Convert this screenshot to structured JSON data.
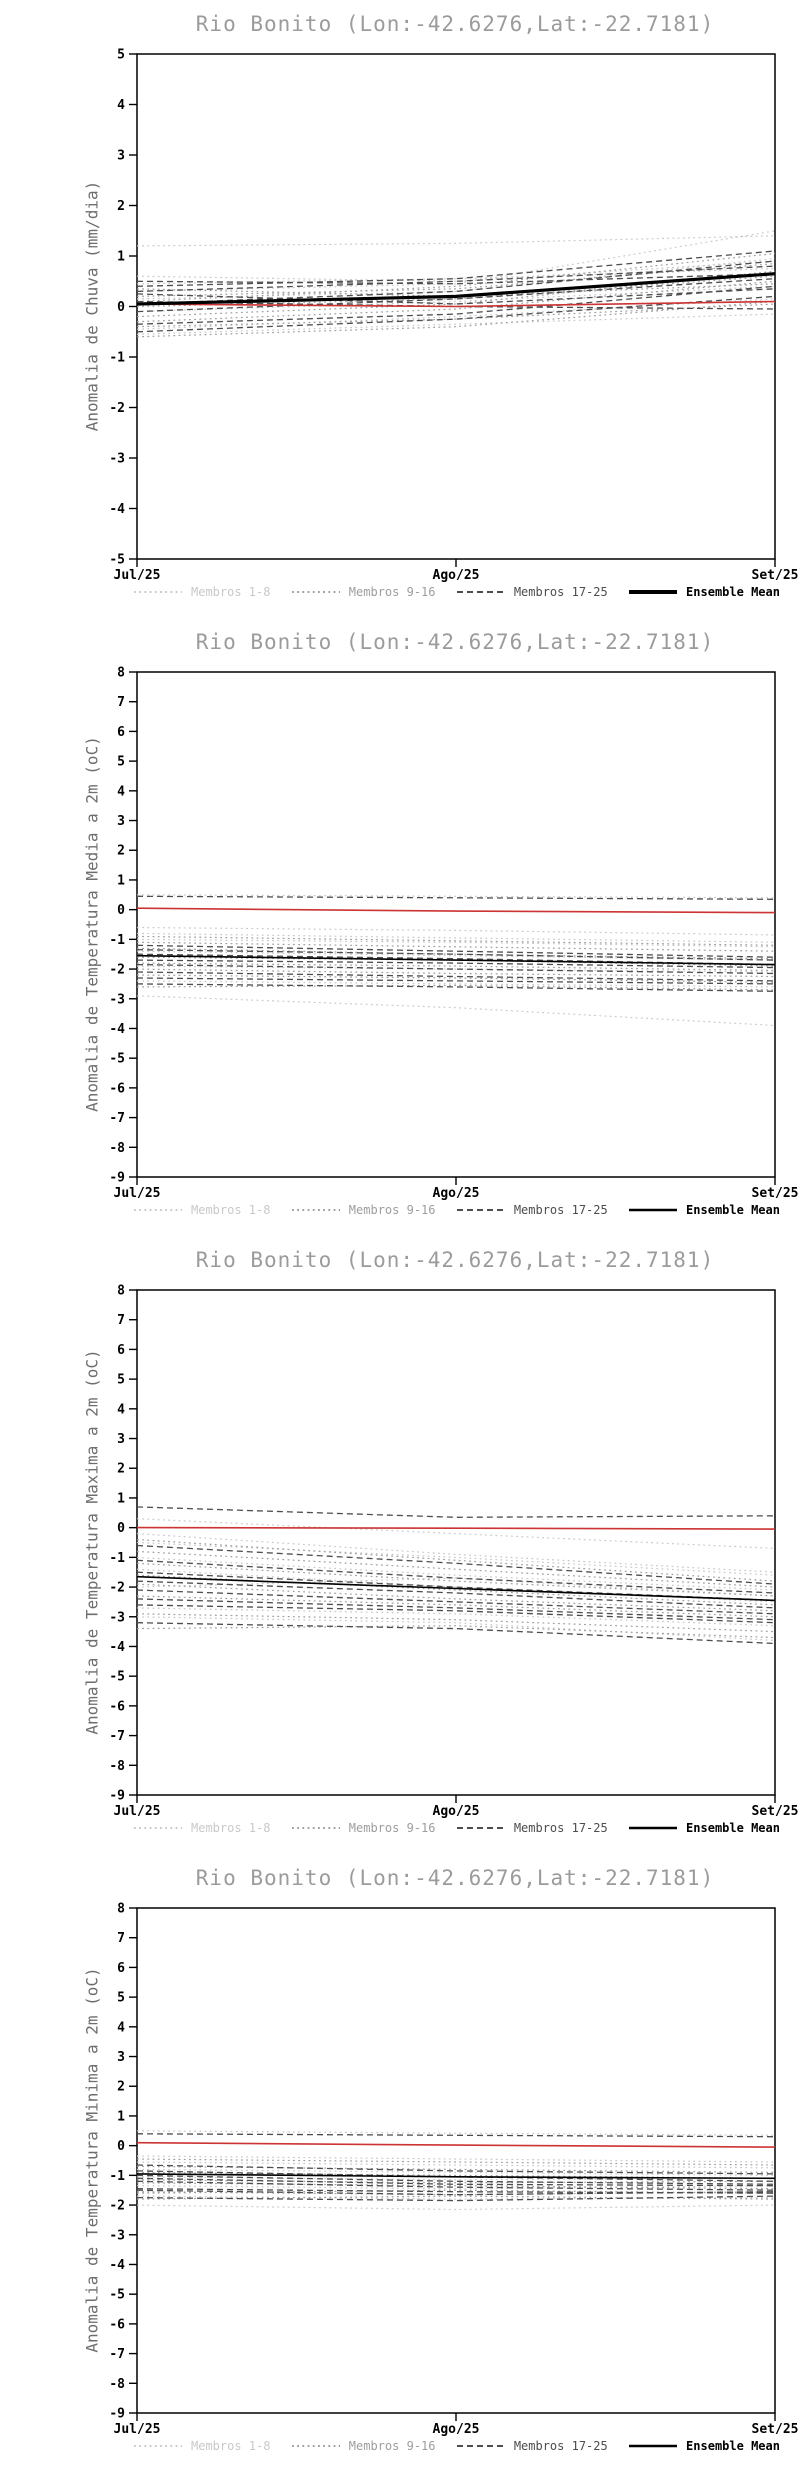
{
  "page": {
    "background": "#ffffff"
  },
  "chart_data": [
    {
      "type": "line",
      "title": "Rio Bonito (Lon:-42.6276,Lat:-22.7181)",
      "ylabel": "Anomalia de Chuva (mm/dia)",
      "xlabel": "",
      "categories": [
        "Jul/25",
        "Ago/25",
        "Set/25"
      ],
      "ylim": [
        -5,
        5
      ],
      "ytick_step": 1,
      "grid": false,
      "legend_position": "bottom",
      "series_groups": [
        {
          "name": "Membros 1-8",
          "color": "#c9c9c9",
          "style": "dotted",
          "width": 1.2,
          "members": [
            [
              1.2,
              1.25,
              1.4
            ],
            [
              0.6,
              0.5,
              0.9
            ],
            [
              0.3,
              0.45,
              1.5
            ],
            [
              -0.1,
              0.1,
              0.4
            ],
            [
              -0.45,
              -0.2,
              0.15
            ],
            [
              0.15,
              0.3,
              0.95
            ],
            [
              -0.55,
              -0.35,
              -0.15
            ],
            [
              0.45,
              0.55,
              0.75
            ]
          ]
        },
        {
          "name": "Membros 9-16",
          "color": "#9e9e9e",
          "style": "dotted",
          "width": 1.2,
          "members": [
            [
              -0.3,
              -0.05,
              0.5
            ],
            [
              0.2,
              0.35,
              0.85
            ],
            [
              -0.6,
              -0.4,
              0.1
            ],
            [
              0.0,
              0.15,
              0.6
            ],
            [
              0.35,
              0.2,
              0.45
            ],
            [
              -0.2,
              0.05,
              0.7
            ],
            [
              0.1,
              0.4,
              1.05
            ],
            [
              -0.4,
              -0.25,
              0.05
            ]
          ]
        },
        {
          "name": "Membros 17-25",
          "color": "#4d4d4d",
          "style": "dashed",
          "width": 1.3,
          "members": [
            [
              0.5,
              0.45,
              0.65
            ],
            [
              -0.1,
              0.15,
              0.55
            ],
            [
              0.25,
              0.05,
              0.35
            ],
            [
              -0.35,
              -0.15,
              0.4
            ],
            [
              0.05,
              0.3,
              0.9
            ],
            [
              0.4,
              0.55,
              1.1
            ],
            [
              -0.5,
              -0.25,
              0.2
            ],
            [
              0.1,
              0.0,
              -0.05
            ],
            [
              0.3,
              0.5,
              0.8
            ]
          ]
        },
        {
          "name": "red-reference-line",
          "color": "#cc3333",
          "style": "solid",
          "width": 1.6,
          "in_legend": false,
          "members": [
            [
              0.05,
              0.0,
              0.1
            ]
          ]
        },
        {
          "name": "Ensemble Mean",
          "color": "#000000",
          "style": "solid",
          "width": 3.2,
          "legend_bold": true,
          "members": [
            [
              0.05,
              0.2,
              0.65
            ]
          ]
        }
      ]
    },
    {
      "type": "line",
      "title": "Rio Bonito (Lon:-42.6276,Lat:-22.7181)",
      "ylabel": "Anomalia de Temperatura Media a 2m (oC)",
      "xlabel": "",
      "categories": [
        "Jul/25",
        "Ago/25",
        "Set/25"
      ],
      "ylim": [
        -9,
        8
      ],
      "ytick_step": 1,
      "grid": false,
      "legend_position": "bottom",
      "series_groups": [
        {
          "name": "Membros 1-8",
          "color": "#c9c9c9",
          "style": "dotted",
          "width": 1.2,
          "members": [
            [
              0.5,
              0.45,
              0.4
            ],
            [
              -0.6,
              -0.7,
              -0.85
            ],
            [
              -2.9,
              -3.3,
              -3.9
            ],
            [
              -1.0,
              -1.1,
              -1.25
            ],
            [
              -1.9,
              -2.0,
              -2.1
            ],
            [
              -0.8,
              -0.95,
              -1.1
            ],
            [
              -2.4,
              -2.5,
              -2.6
            ],
            [
              -1.4,
              -1.55,
              -1.7
            ]
          ]
        },
        {
          "name": "Membros 9-16",
          "color": "#9e9e9e",
          "style": "dotted",
          "width": 1.2,
          "members": [
            [
              -1.1,
              -1.25,
              -1.4
            ],
            [
              -1.8,
              -1.9,
              -2.05
            ],
            [
              -2.2,
              -2.3,
              -2.45
            ],
            [
              -1.3,
              -1.5,
              -1.65
            ],
            [
              -2.6,
              -2.55,
              -2.7
            ],
            [
              -1.6,
              -1.7,
              -1.9
            ],
            [
              -2.0,
              -2.15,
              -2.25
            ],
            [
              -0.9,
              -1.05,
              -1.2
            ]
          ]
        },
        {
          "name": "Membros 17-25",
          "color": "#4d4d4d",
          "style": "dashed",
          "width": 1.3,
          "members": [
            [
              0.45,
              0.4,
              0.35
            ],
            [
              -1.7,
              -1.8,
              -1.95
            ],
            [
              -2.3,
              -2.4,
              -2.5
            ],
            [
              -1.2,
              -1.4,
              -1.6
            ],
            [
              -2.5,
              -2.6,
              -2.75
            ],
            [
              -1.5,
              -1.65,
              -1.85
            ],
            [
              -2.1,
              -2.25,
              -2.4
            ],
            [
              -1.85,
              -2.0,
              -2.15
            ],
            [
              -1.35,
              -1.5,
              -1.7
            ]
          ]
        },
        {
          "name": "red-reference-line",
          "color": "#cc3333",
          "style": "solid",
          "width": 1.6,
          "in_legend": false,
          "members": [
            [
              0.05,
              -0.05,
              -0.1
            ]
          ]
        },
        {
          "name": "Ensemble Mean",
          "color": "#000000",
          "style": "solid",
          "width": 1.6,
          "legend_bold": true,
          "members": [
            [
              -1.55,
              -1.7,
              -1.85
            ]
          ]
        }
      ]
    },
    {
      "type": "line",
      "title": "Rio Bonito (Lon:-42.6276,Lat:-22.7181)",
      "ylabel": "Anomalia de Temperatura Maxima a 2m (oC)",
      "xlabel": "",
      "categories": [
        "Jul/25",
        "Ago/25",
        "Set/25"
      ],
      "ylim": [
        -9,
        8
      ],
      "ytick_step": 1,
      "grid": false,
      "legend_position": "bottom",
      "series_groups": [
        {
          "name": "Membros 1-8",
          "color": "#c9c9c9",
          "style": "dotted",
          "width": 1.2,
          "members": [
            [
              0.3,
              -0.2,
              -0.7
            ],
            [
              -0.5,
              -1.0,
              -1.6
            ],
            [
              -3.0,
              -3.2,
              -3.8
            ],
            [
              -1.0,
              -1.6,
              -2.1
            ],
            [
              -2.0,
              -1.7,
              -2.3
            ],
            [
              -0.2,
              -0.9,
              -1.5
            ],
            [
              -2.7,
              -2.9,
              -3.3
            ],
            [
              -1.4,
              -2.0,
              -2.5
            ]
          ]
        },
        {
          "name": "Membros 9-16",
          "color": "#9e9e9e",
          "style": "dotted",
          "width": 1.2,
          "members": [
            [
              -0.8,
              -1.4,
              -2.0
            ],
            [
              -1.6,
              -2.1,
              -2.6
            ],
            [
              -2.9,
              -3.1,
              -3.5
            ],
            [
              -1.2,
              -1.8,
              -2.3
            ],
            [
              -0.4,
              -1.1,
              -1.8
            ],
            [
              -2.3,
              -2.6,
              -3.0
            ],
            [
              -1.9,
              -2.4,
              -2.8
            ],
            [
              -3.4,
              -3.3,
              -3.7
            ]
          ]
        },
        {
          "name": "Membros 17-25",
          "color": "#4d4d4d",
          "style": "dashed",
          "width": 1.3,
          "members": [
            [
              0.7,
              0.35,
              0.4
            ],
            [
              -0.6,
              -1.2,
              -1.9
            ],
            [
              -1.5,
              -2.0,
              -2.45
            ],
            [
              -2.6,
              -2.8,
              -3.2
            ],
            [
              -1.1,
              -1.7,
              -2.2
            ],
            [
              -2.1,
              -2.5,
              -2.9
            ],
            [
              -3.2,
              -3.4,
              -3.9
            ],
            [
              -1.8,
              -2.2,
              -2.7
            ],
            [
              -2.4,
              -2.7,
              -3.1
            ]
          ]
        },
        {
          "name": "red-reference-line",
          "color": "#cc3333",
          "style": "solid",
          "width": 1.6,
          "in_legend": false,
          "members": [
            [
              0.0,
              -0.02,
              -0.05
            ]
          ]
        },
        {
          "name": "Ensemble Mean",
          "color": "#000000",
          "style": "solid",
          "width": 1.6,
          "legend_bold": true,
          "members": [
            [
              -1.65,
              -2.05,
              -2.45
            ]
          ]
        }
      ]
    },
    {
      "type": "line",
      "title": "Rio Bonito (Lon:-42.6276,Lat:-22.7181)",
      "ylabel": "Anomalia de Temperatura Minima a 2m (oC)",
      "xlabel": "",
      "categories": [
        "Jul/25",
        "Ago/25",
        "Set/25"
      ],
      "ylim": [
        -9,
        8
      ],
      "ytick_step": 1,
      "grid": false,
      "legend_position": "bottom",
      "series_groups": [
        {
          "name": "Membros 1-8",
          "color": "#c9c9c9",
          "style": "dotted",
          "width": 1.2,
          "members": [
            [
              0.5,
              0.42,
              0.35
            ],
            [
              -0.35,
              -0.45,
              -0.55
            ],
            [
              -2.0,
              -2.15,
              -2.0
            ],
            [
              -0.8,
              -0.9,
              -1.0
            ],
            [
              -1.35,
              -1.45,
              -1.35
            ],
            [
              -0.55,
              -0.65,
              -0.75
            ],
            [
              -1.7,
              -1.8,
              -1.75
            ],
            [
              -1.05,
              -1.15,
              -1.1
            ]
          ]
        },
        {
          "name": "Membros 9-16",
          "color": "#9e9e9e",
          "style": "dotted",
          "width": 1.2,
          "members": [
            [
              -0.7,
              -0.8,
              -0.9
            ],
            [
              -1.15,
              -1.25,
              -1.2
            ],
            [
              -1.55,
              -1.65,
              -1.55
            ],
            [
              -0.9,
              -1.0,
              -1.1
            ],
            [
              -1.6,
              -1.5,
              -1.6
            ],
            [
              -1.25,
              -1.35,
              -1.45
            ],
            [
              -0.45,
              -0.55,
              -0.65
            ],
            [
              -1.8,
              -1.7,
              -1.8
            ]
          ]
        },
        {
          "name": "Membros 17-25",
          "color": "#4d4d4d",
          "style": "dashed",
          "width": 1.3,
          "members": [
            [
              0.4,
              0.35,
              0.3
            ],
            [
              -1.0,
              -1.2,
              -1.3
            ],
            [
              -1.45,
              -1.55,
              -1.6
            ],
            [
              -0.65,
              -0.85,
              -0.95
            ],
            [
              -1.2,
              -1.4,
              -1.5
            ],
            [
              -1.75,
              -1.85,
              -1.7
            ],
            [
              -0.85,
              -1.05,
              -1.2
            ],
            [
              -1.5,
              -1.65,
              -1.55
            ],
            [
              -1.1,
              -1.3,
              -1.35
            ]
          ]
        },
        {
          "name": "red-reference-line",
          "color": "#cc3333",
          "style": "solid",
          "width": 1.6,
          "in_legend": false,
          "members": [
            [
              0.1,
              0.02,
              -0.05
            ]
          ]
        },
        {
          "name": "Ensemble Mean",
          "color": "#000000",
          "style": "solid",
          "width": 1.6,
          "legend_bold": true,
          "members": [
            [
              -0.95,
              -1.05,
              -1.1
            ]
          ]
        }
      ]
    }
  ]
}
